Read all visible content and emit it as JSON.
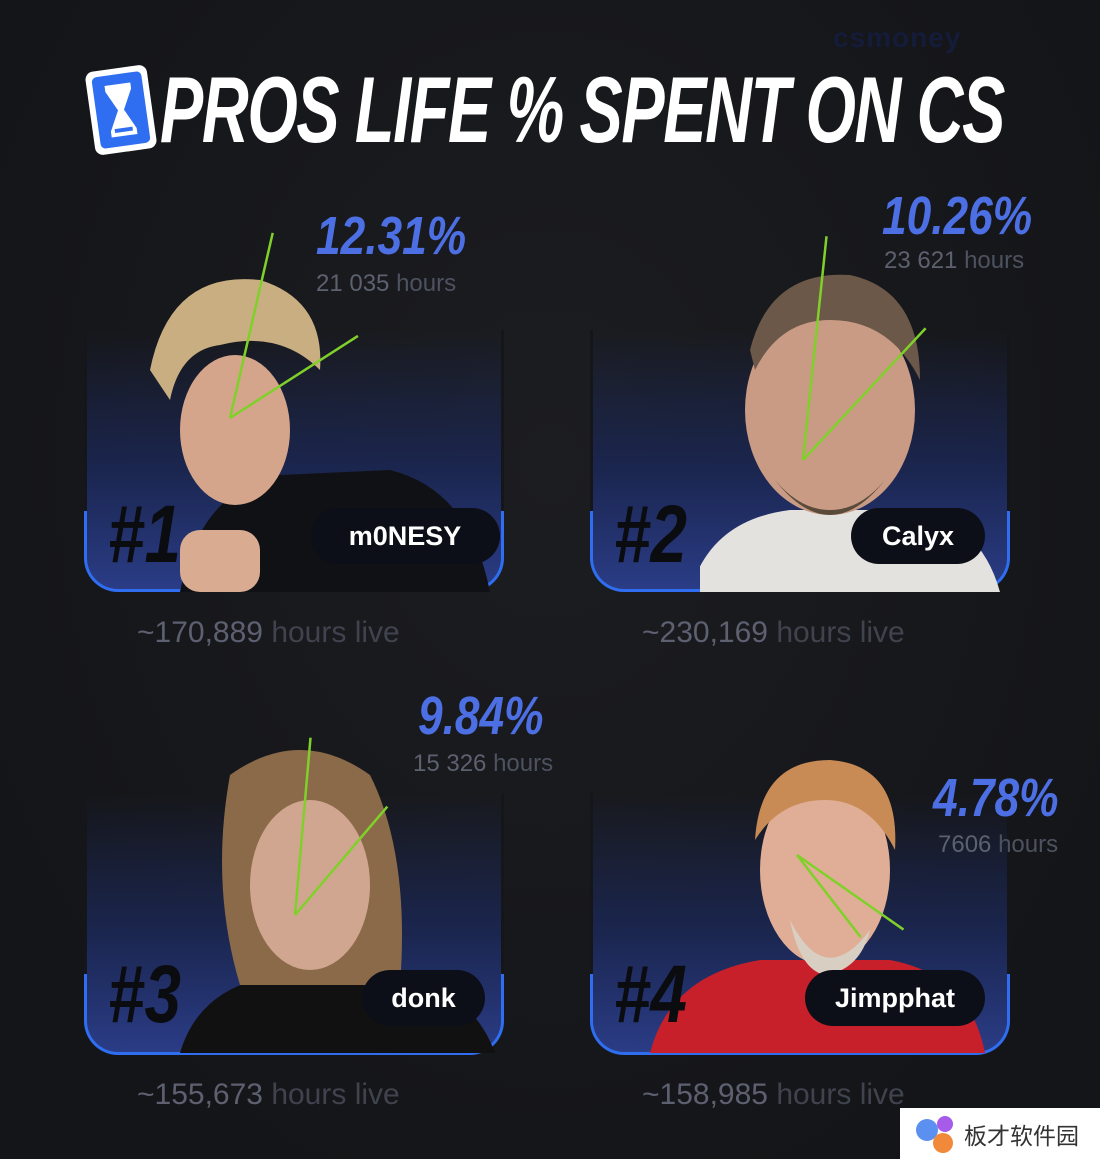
{
  "watermark": "csmoney",
  "title": "PROS LIFE % SPENT ON CS",
  "title_icon": "hourglass-icon",
  "accent_color": "#4d6fe4",
  "border_color": "#2f6ef0",
  "line_color": "#7fd12a",
  "players": [
    {
      "rank": "#1",
      "name": "m0NESY",
      "percent": "12.31%",
      "percent_value": 12.31,
      "hours_num": "21 035",
      "hours_label": "hours",
      "live_num": "~170,889",
      "live_label": "hours live"
    },
    {
      "rank": "#2",
      "name": "Calyx",
      "percent": "10.26%",
      "percent_value": 10.26,
      "hours_num": "23 621",
      "hours_label": "hours",
      "live_num": "~230,169",
      "live_label": "hours live"
    },
    {
      "rank": "#3",
      "name": "donk",
      "percent": "9.84%",
      "percent_value": 9.84,
      "hours_num": "15 326",
      "hours_label": "hours",
      "live_num": "~155,673",
      "live_label": "hours live"
    },
    {
      "rank": "#4",
      "name": "Jimpphat",
      "percent": "4.78%",
      "percent_value": 4.78,
      "hours_num": "7606",
      "hours_label": "hours",
      "live_num": "~158,985",
      "live_label": "hours live"
    }
  ],
  "brand_badge": "板才软件园"
}
